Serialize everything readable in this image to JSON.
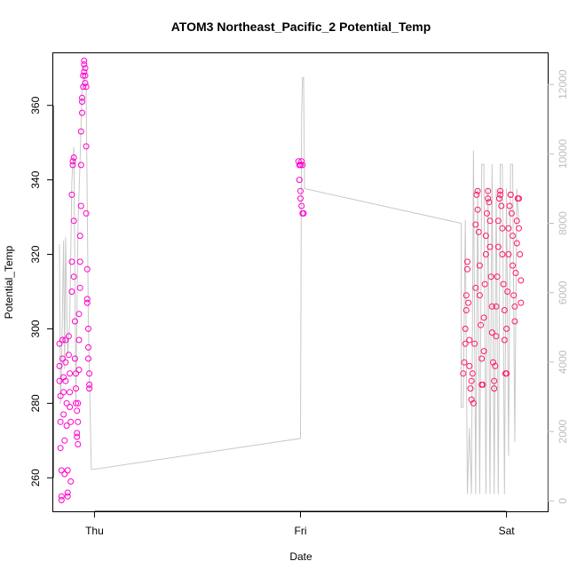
{
  "chart_data": {
    "type": "scatter",
    "title": "ATOM3 Northeast_Pacific_2 Potential_Temp",
    "xlabel": "Date",
    "ylabel": "Potential_Temp",
    "x_ticks": [
      "Thu",
      "Fri",
      "Sat"
    ],
    "y_ticks": [
      "260",
      "280",
      "300",
      "320",
      "340",
      "360"
    ],
    "y_right_ticks": [
      "0",
      "2000",
      "4000",
      "6000",
      "8000",
      "10000",
      "12000"
    ],
    "ylim": [
      251,
      374
    ],
    "y_right_lim": [
      -300,
      12900
    ],
    "xlim": [
      -0.2,
      2.2
    ],
    "grid": false,
    "colors": {
      "points": "#ff00cc",
      "points_dense": "#ff1a66",
      "line": "#c8c8c8",
      "right_axis": "#bdbdbd"
    },
    "series": [
      {
        "type": "scatter",
        "points": [
          {
            "x": -0.17,
            "y": 296
          },
          {
            "x": -0.17,
            "y": 290
          },
          {
            "x": -0.17,
            "y": 286
          },
          {
            "x": -0.165,
            "y": 282
          },
          {
            "x": -0.165,
            "y": 275
          },
          {
            "x": -0.165,
            "y": 268
          },
          {
            "x": -0.16,
            "y": 262
          },
          {
            "x": -0.16,
            "y": 255
          },
          {
            "x": -0.16,
            "y": 254
          },
          {
            "x": -0.155,
            "y": 297
          },
          {
            "x": -0.155,
            "y": 292
          },
          {
            "x": -0.15,
            "y": 287
          },
          {
            "x": -0.15,
            "y": 283
          },
          {
            "x": -0.15,
            "y": 277
          },
          {
            "x": -0.145,
            "y": 270
          },
          {
            "x": -0.145,
            "y": 261
          },
          {
            "x": -0.14,
            "y": 297
          },
          {
            "x": -0.14,
            "y": 291
          },
          {
            "x": -0.14,
            "y": 286
          },
          {
            "x": -0.135,
            "y": 280
          },
          {
            "x": -0.135,
            "y": 274
          },
          {
            "x": -0.13,
            "y": 262
          },
          {
            "x": -0.13,
            "y": 256
          },
          {
            "x": -0.13,
            "y": 255
          },
          {
            "x": -0.125,
            "y": 298
          },
          {
            "x": -0.125,
            "y": 293
          },
          {
            "x": -0.12,
            "y": 288
          },
          {
            "x": -0.12,
            "y": 283
          },
          {
            "x": -0.12,
            "y": 279
          },
          {
            "x": -0.115,
            "y": 275
          },
          {
            "x": -0.115,
            "y": 259
          },
          {
            "x": -0.11,
            "y": 336
          },
          {
            "x": -0.11,
            "y": 318
          },
          {
            "x": -0.11,
            "y": 310
          },
          {
            "x": -0.105,
            "y": 345
          },
          {
            "x": -0.105,
            "y": 344
          },
          {
            "x": -0.1,
            "y": 346
          },
          {
            "x": -0.1,
            "y": 329
          },
          {
            "x": -0.1,
            "y": 314
          },
          {
            "x": -0.095,
            "y": 302
          },
          {
            "x": -0.095,
            "y": 292
          },
          {
            "x": -0.09,
            "y": 288
          },
          {
            "x": -0.09,
            "y": 284
          },
          {
            "x": -0.09,
            "y": 280
          },
          {
            "x": -0.085,
            "y": 278
          },
          {
            "x": -0.085,
            "y": 272
          },
          {
            "x": -0.085,
            "y": 271
          },
          {
            "x": -0.08,
            "y": 269
          },
          {
            "x": -0.08,
            "y": 275
          },
          {
            "x": -0.08,
            "y": 280
          },
          {
            "x": -0.075,
            "y": 289
          },
          {
            "x": -0.075,
            "y": 297
          },
          {
            "x": -0.075,
            "y": 304
          },
          {
            "x": -0.07,
            "y": 311
          },
          {
            "x": -0.07,
            "y": 318
          },
          {
            "x": -0.07,
            "y": 325
          },
          {
            "x": -0.065,
            "y": 333
          },
          {
            "x": -0.065,
            "y": 344
          },
          {
            "x": -0.065,
            "y": 353
          },
          {
            "x": -0.06,
            "y": 358
          },
          {
            "x": -0.06,
            "y": 361
          },
          {
            "x": -0.06,
            "y": 362
          },
          {
            "x": -0.055,
            "y": 365
          },
          {
            "x": -0.055,
            "y": 368
          },
          {
            "x": -0.05,
            "y": 369
          },
          {
            "x": -0.05,
            "y": 371
          },
          {
            "x": -0.05,
            "y": 372
          },
          {
            "x": -0.045,
            "y": 370
          },
          {
            "x": -0.045,
            "y": 368
          },
          {
            "x": -0.045,
            "y": 366
          },
          {
            "x": -0.04,
            "y": 365
          },
          {
            "x": -0.04,
            "y": 349
          },
          {
            "x": -0.04,
            "y": 331
          },
          {
            "x": -0.035,
            "y": 316
          },
          {
            "x": -0.035,
            "y": 308
          },
          {
            "x": -0.035,
            "y": 307
          },
          {
            "x": -0.03,
            "y": 300
          },
          {
            "x": -0.03,
            "y": 295
          },
          {
            "x": -0.03,
            "y": 292
          },
          {
            "x": -0.025,
            "y": 288
          },
          {
            "x": -0.025,
            "y": 285
          },
          {
            "x": -0.025,
            "y": 284
          },
          {
            "x": 0.99,
            "y": 345
          },
          {
            "x": 0.995,
            "y": 344
          },
          {
            "x": 1.0,
            "y": 344
          },
          {
            "x": 1.005,
            "y": 345
          },
          {
            "x": 1.01,
            "y": 344
          },
          {
            "x": 0.995,
            "y": 340
          },
          {
            "x": 1.0,
            "y": 337
          },
          {
            "x": 1.0,
            "y": 335
          },
          {
            "x": 1.005,
            "y": 333
          },
          {
            "x": 1.01,
            "y": 331
          },
          {
            "x": 1.015,
            "y": 331
          },
          {
            "x": 1.79,
            "y": 288
          },
          {
            "x": 1.795,
            "y": 291
          },
          {
            "x": 1.8,
            "y": 296
          },
          {
            "x": 1.8,
            "y": 300
          },
          {
            "x": 1.805,
            "y": 305
          },
          {
            "x": 1.805,
            "y": 309
          },
          {
            "x": 1.81,
            "y": 316
          },
          {
            "x": 1.81,
            "y": 318
          },
          {
            "x": 1.815,
            "y": 307
          },
          {
            "x": 1.82,
            "y": 297
          },
          {
            "x": 1.82,
            "y": 290
          },
          {
            "x": 1.825,
            "y": 284
          },
          {
            "x": 1.83,
            "y": 281
          },
          {
            "x": 1.83,
            "y": 286
          },
          {
            "x": 1.835,
            "y": 288
          },
          {
            "x": 1.84,
            "y": 280
          },
          {
            "x": 1.845,
            "y": 296
          },
          {
            "x": 1.85,
            "y": 311
          },
          {
            "x": 1.85,
            "y": 328
          },
          {
            "x": 1.855,
            "y": 336
          },
          {
            "x": 1.86,
            "y": 337
          },
          {
            "x": 1.86,
            "y": 332
          },
          {
            "x": 1.865,
            "y": 326
          },
          {
            "x": 1.87,
            "y": 317
          },
          {
            "x": 1.87,
            "y": 309
          },
          {
            "x": 1.875,
            "y": 301
          },
          {
            "x": 1.88,
            "y": 292
          },
          {
            "x": 1.88,
            "y": 285
          },
          {
            "x": 1.885,
            "y": 285
          },
          {
            "x": 1.89,
            "y": 294
          },
          {
            "x": 1.89,
            "y": 303
          },
          {
            "x": 1.895,
            "y": 312
          },
          {
            "x": 1.9,
            "y": 320
          },
          {
            "x": 1.9,
            "y": 325
          },
          {
            "x": 1.905,
            "y": 331
          },
          {
            "x": 1.91,
            "y": 335
          },
          {
            "x": 1.91,
            "y": 337
          },
          {
            "x": 1.915,
            "y": 334
          },
          {
            "x": 1.92,
            "y": 329
          },
          {
            "x": 1.92,
            "y": 322
          },
          {
            "x": 1.925,
            "y": 314
          },
          {
            "x": 1.93,
            "y": 306
          },
          {
            "x": 1.93,
            "y": 299
          },
          {
            "x": 1.935,
            "y": 291
          },
          {
            "x": 1.94,
            "y": 286
          },
          {
            "x": 1.94,
            "y": 284
          },
          {
            "x": 1.945,
            "y": 290
          },
          {
            "x": 1.95,
            "y": 298
          },
          {
            "x": 1.95,
            "y": 306
          },
          {
            "x": 1.955,
            "y": 314
          },
          {
            "x": 1.96,
            "y": 322
          },
          {
            "x": 1.96,
            "y": 329
          },
          {
            "x": 1.965,
            "y": 335
          },
          {
            "x": 1.97,
            "y": 337
          },
          {
            "x": 1.97,
            "y": 336
          },
          {
            "x": 1.975,
            "y": 333
          },
          {
            "x": 1.98,
            "y": 327
          },
          {
            "x": 1.98,
            "y": 320
          },
          {
            "x": 1.985,
            "y": 312
          },
          {
            "x": 1.99,
            "y": 305
          },
          {
            "x": 1.99,
            "y": 297
          },
          {
            "x": 1.995,
            "y": 288
          },
          {
            "x": 2.0,
            "y": 288
          },
          {
            "x": 2.0,
            "y": 300
          },
          {
            "x": 2.005,
            "y": 310
          },
          {
            "x": 2.01,
            "y": 320
          },
          {
            "x": 2.01,
            "y": 327
          },
          {
            "x": 2.015,
            "y": 333
          },
          {
            "x": 2.02,
            "y": 336
          },
          {
            "x": 2.02,
            "y": 336
          },
          {
            "x": 2.025,
            "y": 331
          },
          {
            "x": 2.03,
            "y": 325
          },
          {
            "x": 2.03,
            "y": 317
          },
          {
            "x": 2.035,
            "y": 309
          },
          {
            "x": 2.04,
            "y": 302
          },
          {
            "x": 2.04,
            "y": 306
          },
          {
            "x": 2.045,
            "y": 315
          },
          {
            "x": 2.05,
            "y": 323
          },
          {
            "x": 2.05,
            "y": 329
          },
          {
            "x": 2.055,
            "y": 335
          },
          {
            "x": 2.06,
            "y": 335
          },
          {
            "x": 2.06,
            "y": 327
          },
          {
            "x": 2.065,
            "y": 320
          },
          {
            "x": 2.07,
            "y": 313
          },
          {
            "x": 2.07,
            "y": 307
          }
        ]
      },
      {
        "type": "line",
        "axis": "right",
        "points": [
          {
            "x": -0.17,
            "y": 7400
          },
          {
            "x": -0.165,
            "y": 2800
          },
          {
            "x": -0.16,
            "y": 3800
          },
          {
            "x": -0.15,
            "y": 7500
          },
          {
            "x": -0.145,
            "y": 3800
          },
          {
            "x": -0.14,
            "y": 7600
          },
          {
            "x": -0.13,
            "y": 4200
          },
          {
            "x": -0.12,
            "y": 5200
          },
          {
            "x": -0.11,
            "y": 9200
          },
          {
            "x": -0.1,
            "y": 10200
          },
          {
            "x": -0.09,
            "y": 2800
          },
          {
            "x": -0.08,
            "y": 7900
          },
          {
            "x": -0.07,
            "y": 9800
          },
          {
            "x": -0.06,
            "y": 12000
          },
          {
            "x": -0.05,
            "y": 12200
          },
          {
            "x": -0.04,
            "y": 11800
          },
          {
            "x": -0.03,
            "y": 5200
          },
          {
            "x": -0.015,
            "y": 900
          },
          {
            "x": 1.0,
            "y": 1800
          },
          {
            "x": 1.005,
            "y": 11000
          },
          {
            "x": 1.01,
            "y": 12200
          },
          {
            "x": 1.015,
            "y": 12200
          },
          {
            "x": 1.02,
            "y": 9000
          },
          {
            "x": 1.78,
            "y": 8000
          },
          {
            "x": 1.78,
            "y": 2700
          },
          {
            "x": 1.79,
            "y": 2700
          },
          {
            "x": 1.8,
            "y": 8100
          },
          {
            "x": 1.81,
            "y": 200
          },
          {
            "x": 1.82,
            "y": 2100
          },
          {
            "x": 1.83,
            "y": 200
          },
          {
            "x": 1.84,
            "y": 10100
          },
          {
            "x": 1.85,
            "y": 200
          },
          {
            "x": 1.86,
            "y": 9000
          },
          {
            "x": 1.87,
            "y": 200
          },
          {
            "x": 1.88,
            "y": 9700
          },
          {
            "x": 1.89,
            "y": 9700
          },
          {
            "x": 1.9,
            "y": 200
          },
          {
            "x": 1.91,
            "y": 9000
          },
          {
            "x": 1.92,
            "y": 200
          },
          {
            "x": 1.93,
            "y": 9700
          },
          {
            "x": 1.94,
            "y": 200
          },
          {
            "x": 1.95,
            "y": 9000
          },
          {
            "x": 1.96,
            "y": 200
          },
          {
            "x": 1.97,
            "y": 9700
          },
          {
            "x": 1.98,
            "y": 9700
          },
          {
            "x": 1.99,
            "y": 200
          },
          {
            "x": 2.0,
            "y": 9000
          },
          {
            "x": 2.01,
            "y": 1300
          },
          {
            "x": 2.02,
            "y": 9700
          },
          {
            "x": 2.03,
            "y": 9700
          },
          {
            "x": 2.04,
            "y": 1700
          },
          {
            "x": 2.05,
            "y": 9000
          },
          {
            "x": 2.06,
            "y": 8000
          }
        ]
      }
    ]
  }
}
